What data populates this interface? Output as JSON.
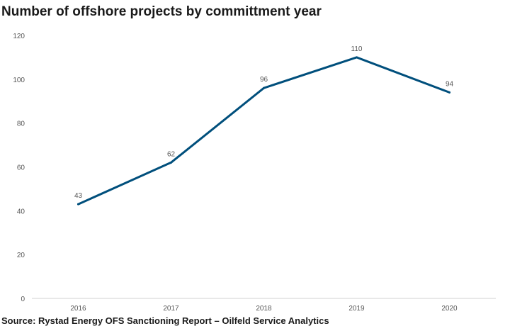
{
  "title": "Number of offshore projects by committment year",
  "source": "Source: Rystad Energy OFS Sanctioning Report – Oilfeld Service Analytics",
  "chart_data": {
    "type": "line",
    "categories": [
      "2016",
      "2017",
      "2018",
      "2019",
      "2020"
    ],
    "values": [
      43,
      62,
      96,
      110,
      94
    ],
    "data_labels": [
      "43",
      "62",
      "96",
      "110",
      "94"
    ],
    "yticks": [
      "0",
      "20",
      "40",
      "60",
      "80",
      "100",
      "120"
    ],
    "ylim": [
      0,
      120
    ],
    "grid": false,
    "legend": "none",
    "line_color": "#004f7c"
  }
}
